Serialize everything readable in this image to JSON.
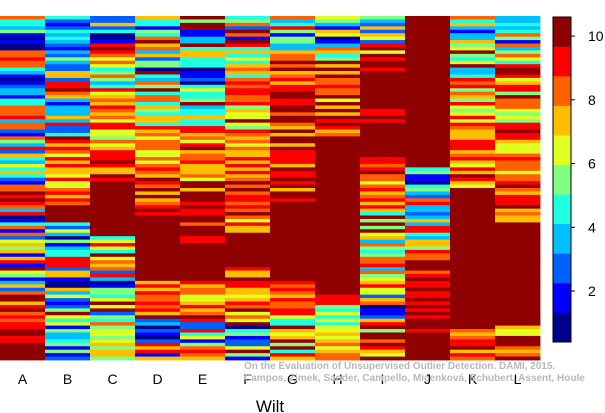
{
  "chart_data": {
    "type": "heatmap",
    "title": "",
    "xlabel": "Wilt",
    "ylabel": "",
    "categories": [
      "A",
      "B",
      "C",
      "D",
      "E",
      "F",
      "G",
      "H",
      "I",
      "J",
      "K",
      "L"
    ],
    "colorbar": {
      "ticks": [
        2,
        4,
        6,
        8,
        10
      ],
      "range": [
        0.4,
        10.6
      ],
      "levels": [
        "#00008f",
        "#0000ff",
        "#0060ff",
        "#00bfff",
        "#20ffdf",
        "#80ff80",
        "#dfff20",
        "#ffbf00",
        "#ff6000",
        "#ff0000",
        "#8f0000"
      ]
    },
    "rows": 100,
    "columns": [
      {
        "name": "A",
        "bands": [
          [
            0,
            8
          ],
          [
            0,
            1
          ],
          [
            8,
            9
          ],
          [
            0,
            7
          ],
          [
            1,
            4
          ],
          [
            0,
            9
          ],
          [
            0,
            10
          ],
          [
            1,
            10
          ],
          [
            0,
            10
          ],
          [
            0,
            11
          ],
          [
            5,
            11
          ],
          [
            0,
            11
          ],
          [
            0,
            9
          ],
          [
            0,
            8
          ],
          [
            0,
            11
          ],
          [
            0,
            12
          ],
          [
            3,
            11
          ],
          [
            7,
            11
          ],
          [
            8,
            11
          ],
          [
            9,
            11
          ],
          [
            10,
            11
          ]
        ]
      },
      {
        "name": "B",
        "bands": [
          [
            0,
            7
          ],
          [
            0,
            4
          ],
          [
            0,
            10
          ],
          [
            0,
            12
          ],
          [
            0,
            11
          ],
          [
            0,
            8
          ],
          [
            0,
            9
          ],
          [
            4,
            10
          ],
          [
            6,
            10
          ],
          [
            5,
            9
          ],
          [
            6,
            10
          ],
          [
            10,
            11
          ],
          [
            0,
            6
          ],
          [
            0,
            7
          ],
          [
            0,
            10
          ],
          [
            0,
            8
          ],
          [
            0,
            7
          ],
          [
            0,
            10
          ],
          [
            0,
            6
          ]
        ]
      },
      {
        "name": "C",
        "bands": [
          [
            0,
            12
          ],
          [
            4,
            10
          ],
          [
            3,
            11
          ],
          [
            6,
            12
          ],
          [
            5,
            10
          ],
          [
            7,
            11
          ],
          [
            9,
            11
          ],
          [
            10,
            11
          ],
          [
            3,
            10
          ],
          [
            0,
            10
          ],
          [
            0,
            11
          ],
          [
            4,
            8
          ]
        ]
      },
      {
        "name": "D",
        "bands": [
          [
            0,
            12
          ],
          [
            0,
            11
          ],
          [
            3,
            10
          ],
          [
            5,
            9
          ],
          [
            7,
            11
          ],
          [
            9,
            11
          ],
          [
            10,
            10
          ],
          [
            7,
            10
          ],
          [
            0,
            10
          ]
        ]
      },
      {
        "name": "E",
        "bands": [
          [
            0,
            11
          ],
          [
            0,
            12
          ],
          [
            3,
            11
          ],
          [
            5,
            10
          ],
          [
            6,
            11
          ],
          [
            8,
            11
          ],
          [
            10,
            11
          ],
          [
            6,
            10
          ],
          [
            0,
            10
          ]
        ]
      },
      {
        "name": "F",
        "bands": [
          [
            0,
            10
          ],
          [
            3,
            9
          ],
          [
            4,
            11
          ],
          [
            4,
            12
          ],
          [
            6,
            10
          ],
          [
            7,
            10
          ],
          [
            6,
            11
          ],
          [
            10,
            11
          ],
          [
            4,
            10
          ],
          [
            3,
            11
          ],
          [
            0,
            11
          ]
        ]
      },
      {
        "name": "G",
        "bands": [
          [
            0,
            9
          ],
          [
            4,
            12
          ],
          [
            6,
            11
          ],
          [
            6,
            11
          ],
          [
            7,
            11
          ],
          [
            10,
            11
          ],
          [
            10,
            11
          ],
          [
            6,
            10
          ],
          [
            3,
            11
          ]
        ]
      },
      {
        "name": "H",
        "bands": [
          [
            0,
            8
          ],
          [
            3,
            11
          ],
          [
            5,
            11
          ],
          [
            7,
            11
          ],
          [
            10,
            11
          ],
          [
            10,
            11
          ],
          [
            10,
            11
          ],
          [
            10,
            11
          ],
          [
            10,
            11
          ],
          [
            3,
            10
          ],
          [
            5,
            10
          ]
        ]
      },
      {
        "name": "I",
        "bands": [
          [
            0,
            7
          ],
          [
            6,
            11
          ],
          [
            11,
            11
          ],
          [
            8,
            11
          ],
          [
            10,
            12
          ],
          [
            8,
            10
          ],
          [
            6,
            11
          ],
          [
            4,
            11
          ],
          [
            3,
            10
          ],
          [
            3,
            10
          ],
          [
            0,
            10
          ],
          [
            4,
            11
          ],
          [
            5,
            10
          ]
        ]
      },
      {
        "name": "J",
        "bands": [
          [
            0,
            44
          ],
          [
            0,
            6
          ],
          [
            2,
            9
          ],
          [
            3,
            10
          ],
          [
            7,
            11
          ],
          [
            8,
            11
          ],
          [
            9,
            11
          ],
          [
            11,
            11
          ],
          [
            10,
            11
          ],
          [
            10,
            11
          ],
          [
            7,
            10
          ],
          [
            6,
            10
          ]
        ]
      },
      {
        "name": "K",
        "bands": [
          [
            0,
            8
          ],
          [
            3,
            11
          ],
          [
            5,
            10
          ],
          [
            6,
            10
          ],
          [
            6,
            10
          ],
          [
            10,
            11
          ],
          [
            10,
            11
          ],
          [
            10,
            11
          ],
          [
            10,
            11
          ],
          [
            6,
            10
          ]
        ]
      },
      {
        "name": "L",
        "bands": [
          [
            0,
            9
          ],
          [
            4,
            11
          ],
          [
            4,
            10
          ],
          [
            5,
            11
          ],
          [
            6,
            10
          ],
          [
            7,
            11
          ],
          [
            10,
            11
          ],
          [
            10,
            11
          ],
          [
            10,
            11
          ],
          [
            6,
            10
          ]
        ]
      }
    ]
  },
  "credit": {
    "line1": "On the Evaluation of Unsupervised Outlier Detection. DAMI, 2015.",
    "line2": "Campos, Zimek, Sander, Campello, Micenková, Schubert, Assent, Houle"
  }
}
